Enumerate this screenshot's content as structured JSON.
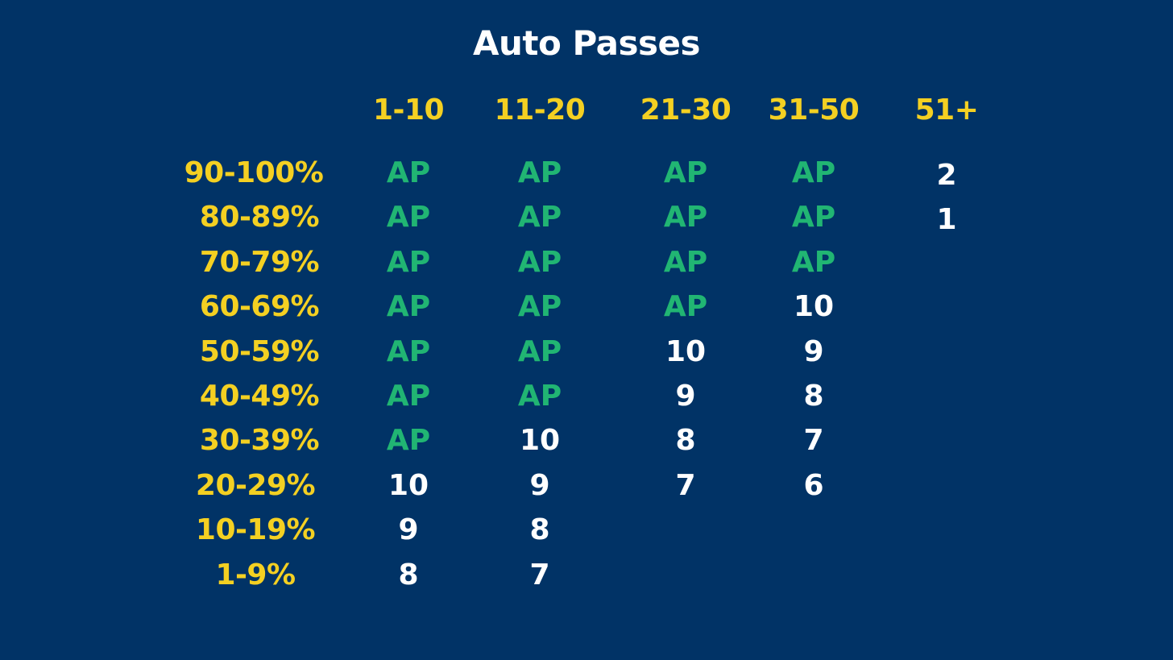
{
  "title": "Auto Passes",
  "colors": {
    "background": "#013366",
    "title": "#ffffff",
    "header": "#f4d022",
    "auto_pass": "#21b573",
    "number": "#ffffff"
  },
  "table": {
    "columns": [
      "1-10",
      "11-20",
      "21-30",
      "31-50",
      "51+"
    ],
    "rows": [
      {
        "label": "90-100%",
        "cells": [
          "AP",
          "AP",
          "AP",
          "AP",
          "2"
        ]
      },
      {
        "label": "80-89%",
        "cells": [
          "AP",
          "AP",
          "AP",
          "AP",
          "1"
        ]
      },
      {
        "label": "70-79%",
        "cells": [
          "AP",
          "AP",
          "AP",
          "AP",
          ""
        ]
      },
      {
        "label": "60-69%",
        "cells": [
          "AP",
          "AP",
          "AP",
          "10",
          ""
        ]
      },
      {
        "label": "50-59%",
        "cells": [
          "AP",
          "AP",
          "10",
          "9",
          ""
        ]
      },
      {
        "label": "40-49%",
        "cells": [
          "AP",
          "AP",
          "9",
          "8",
          ""
        ]
      },
      {
        "label": "30-39%",
        "cells": [
          "AP",
          "10",
          "8",
          "7",
          ""
        ]
      },
      {
        "label": "20-29%",
        "cells": [
          "10",
          "9",
          "7",
          "6",
          ""
        ]
      },
      {
        "label": "10-19%",
        "cells": [
          "9",
          "8",
          "",
          "",
          ""
        ]
      },
      {
        "label": "1-9%",
        "cells": [
          "8",
          "7",
          "",
          "",
          ""
        ]
      }
    ]
  }
}
